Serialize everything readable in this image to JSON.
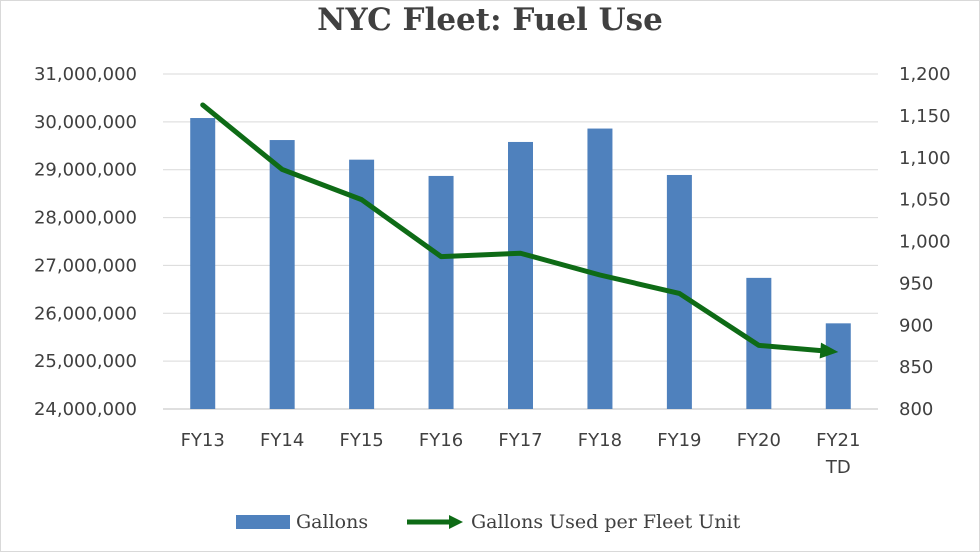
{
  "chart_data": {
    "type": "bar+line",
    "title": "NYC Fleet: Fuel Use",
    "categories": [
      "FY13",
      "FY14",
      "FY15",
      "FY16",
      "FY17",
      "FY18",
      "FY19",
      "FY20",
      "FY21\nTD"
    ],
    "series": [
      {
        "name": "Gallons",
        "type": "bar",
        "axis": "left",
        "color": "#4f81bd",
        "values": [
          30080000,
          29620000,
          29210000,
          28870000,
          29580000,
          29860000,
          28890000,
          26740000,
          25790000
        ]
      },
      {
        "name": "Gallons Used per Fleet Unit",
        "type": "line",
        "axis": "right",
        "color": "#0e6b16",
        "values": [
          1163,
          1086,
          1050,
          982,
          986,
          960,
          938,
          876,
          868
        ]
      }
    ],
    "yaxis_left": {
      "min": 24000000,
      "max": 31000000,
      "ticks": [
        "24,000,000",
        "25,000,000",
        "26,000,000",
        "27,000,000",
        "28,000,000",
        "29,000,000",
        "30,000,000",
        "31,000,000"
      ]
    },
    "yaxis_right": {
      "min": 800,
      "max": 1200,
      "ticks": [
        "800",
        "850",
        "900",
        "950",
        "1,000",
        "1,050",
        "1,100",
        "1,150",
        "1,200"
      ]
    },
    "grid": true,
    "legend_position": "bottom"
  }
}
